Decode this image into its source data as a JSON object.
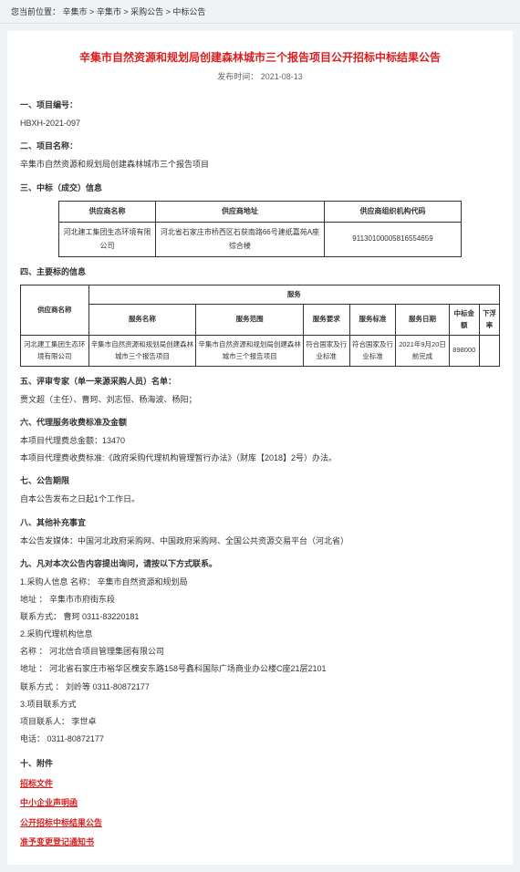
{
  "breadcrumb": {
    "prefix": "您当前位置：",
    "items": [
      "辛集市",
      "辛集市",
      "采购公告",
      "中标公告"
    ]
  },
  "title": "辛集市自然资源和规划局创建森林城市三个报告项目公开招标中标结果公告",
  "publish_time_label": "发布时间：",
  "publish_time": "2021-08-13",
  "s1": {
    "heading": "一、项目编号：",
    "value": "HBXH-2021-097"
  },
  "s2": {
    "heading": "二、项目名称：",
    "value": "辛集市自然资源和规划局创建森林城市三个报告项目"
  },
  "s3": {
    "heading": "三、中标（成交）信息"
  },
  "table1": {
    "headers": [
      "供应商名称",
      "供应商地址",
      "供应商组织机构代码"
    ],
    "row": [
      "河北建工集团生态环境有限公司",
      "河北省石家庄市桥西区石获南路66号建纸嘉苑A座综合楼",
      "91130100005816554659"
    ]
  },
  "s4": {
    "heading": "四、主要标的信息"
  },
  "table2": {
    "service_header": "服务",
    "headers": [
      "供应商名称",
      "服务名称",
      "服务范围",
      "服务要求",
      "服务标准",
      "服务日期",
      "中标金额",
      "下浮率"
    ],
    "row": [
      "河北建工集团生态环境有限公司",
      "辛集市自然资源和规划局创建森林城市三个报告项目",
      "辛集市自然资源和规划局创建森林城市三个报告项目",
      "符合国家及行业标准",
      "符合国家及行业标准",
      "2021年9月20日前完成",
      "898000",
      ""
    ]
  },
  "s5": {
    "heading": "五、评审专家（单一来源采购人员）名单：",
    "value": "贾文超（主任）、曹珂、刘志恒、杨海波、杨阳；"
  },
  "s6": {
    "heading": "六、代理服务收费标准及金额",
    "line1": "本项目代理费总金额：13470",
    "line2": "本项目代理费收费标准:《政府采购代理机构管理暂行办法》（财库【2018】2号）办法。"
  },
  "s7": {
    "heading": "七、公告期限",
    "value": "自本公告发布之日起1个工作日。"
  },
  "s8": {
    "heading": "八、其他补充事宜",
    "value": "本公告发媒体：中国河北政府采购网、中国政府采购网、全国公共资源交易平台（河北省）"
  },
  "s9": {
    "heading": "九、凡对本次公告内容提出询问，请按以下方式联系。",
    "l1": "1.采购人信息  名称： 辛集市自然资源和规划局",
    "l2": "地址 ：  辛集市市府街东段",
    "l3": "联系方式：  曹珂 0311-83220181",
    "l4": "2.采购代理机构信息",
    "l5": "名称 ： 河北信合项目管理集团有限公司",
    "l6": "地址 ： 河北省石家庄市裕华区槐安东路158号鑫科国际广场商业办公楼C座21层2101",
    "l7": "联系方式 ： 刘岭等 0311-80872177",
    "l8": "3.项目联系方式",
    "l9": "项目联系人： 李世卓",
    "l10": "电话： 0311-80872177"
  },
  "attachments": {
    "heading": "十、附件",
    "items": [
      "招标文件",
      "中小企业声明函",
      "公开招标中标结果公告",
      "准予变更登记通知书"
    ]
  },
  "colors": {
    "accent_red": "#d82020",
    "page_bg": "#f0f3f5",
    "card_bg": "#ffffff",
    "text": "#333333",
    "border": "#333333"
  }
}
